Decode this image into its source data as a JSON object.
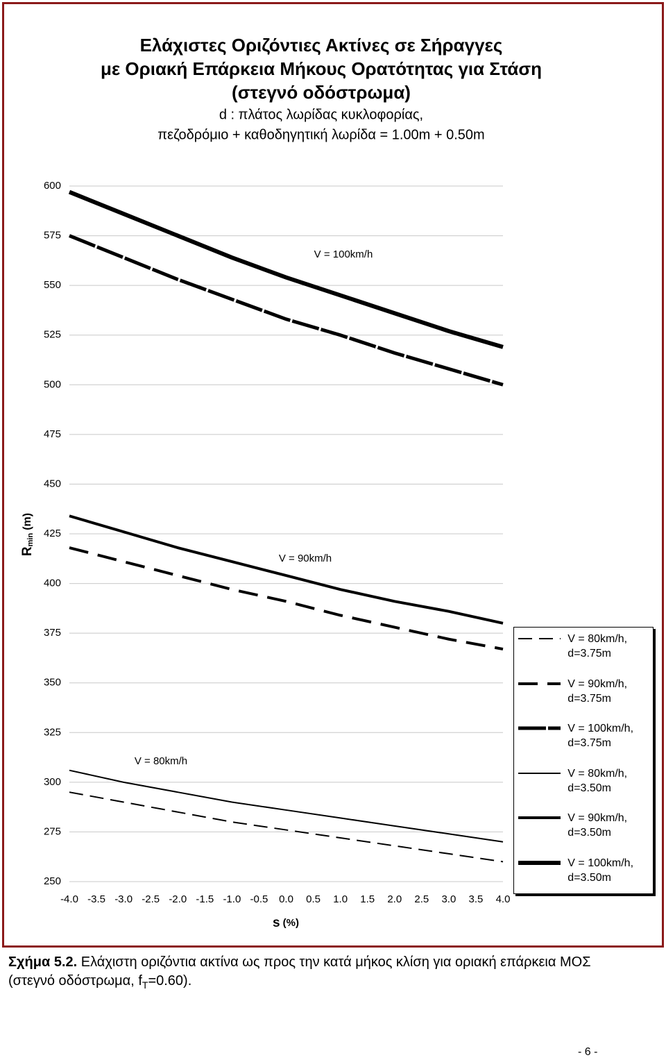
{
  "chart_data": {
    "type": "line",
    "title": [
      "Ελάχιστες Οριζόντιες Ακτίνες σε Σήραγγες",
      "με Οριακή Επάρκεια Μήκους Ορατότητας για Στάση",
      "(στεγνό οδόστρωμα)",
      "d : πλάτος λωρίδας κυκλοφορίας,",
      "πεζοδρόμιο + καθοδηγητική λωρίδα  = 1.00m + 0.50m"
    ],
    "y_label": {
      "main": "R",
      "sub": "min",
      "unit": "(m)"
    },
    "x_label": {
      "main": "s",
      "unit": "(%)"
    },
    "annotations": [
      "V = 100km/h",
      "V = 90km/h",
      "V = 80km/h"
    ],
    "x": [
      -4,
      -3,
      -2,
      -1,
      0,
      1,
      2,
      3,
      4
    ],
    "xlim": [
      -4,
      4
    ],
    "xticks": [
      {
        "value": -4,
        "label": "-4.0"
      },
      {
        "value": -3.5,
        "label": "-3.5"
      },
      {
        "value": -3,
        "label": "-3.0"
      },
      {
        "value": -2.5,
        "label": "-2.5"
      },
      {
        "value": -2,
        "label": "-2.0"
      },
      {
        "value": -1.5,
        "label": "-1.5"
      },
      {
        "value": -1,
        "label": "-1.0"
      },
      {
        "value": -0.5,
        "label": "-0.5"
      },
      {
        "value": 0,
        "label": "0.0"
      },
      {
        "value": 0.5,
        "label": "0.5"
      },
      {
        "value": 1,
        "label": "1.0"
      },
      {
        "value": 1.5,
        "label": "1.5"
      },
      {
        "value": 2,
        "label": "2.0"
      },
      {
        "value": 2.5,
        "label": "2.5"
      },
      {
        "value": 3,
        "label": "3.0"
      },
      {
        "value": 3.5,
        "label": "3.5"
      },
      {
        "value": 4,
        "label": "4.0"
      }
    ],
    "ylim": [
      250,
      600
    ],
    "yticks": [
      250,
      275,
      300,
      325,
      350,
      375,
      400,
      425,
      450,
      475,
      500,
      525,
      550,
      575,
      600
    ],
    "grid": true,
    "legend": "right",
    "series": [
      {
        "name": "V = 80km/h, d=3.75m",
        "color": "#000000",
        "values": [
          295,
          290,
          285,
          280,
          276,
          272,
          268,
          264,
          260
        ]
      },
      {
        "name": "V = 90km/h, d=3.75m",
        "color": "#000000",
        "values": [
          418,
          411,
          404,
          397,
          391,
          384,
          378,
          372,
          367
        ]
      },
      {
        "name": "V = 100km/h, d=3.75m",
        "color": "#000000",
        "values": [
          575,
          564,
          553,
          543,
          533,
          525,
          516,
          508,
          500
        ]
      },
      {
        "name": "V = 80km/h, d=3.50m",
        "color": "#000000",
        "values": [
          306,
          300,
          295,
          290,
          286,
          282,
          278,
          274,
          270
        ]
      },
      {
        "name": "V = 90km/h, d=3.50m",
        "color": "#000000",
        "values": [
          434,
          426,
          418,
          411,
          404,
          397,
          391,
          386,
          380
        ]
      },
      {
        "name": "V = 100km/h, d=3.50m",
        "color": "#000000",
        "values": [
          597,
          586,
          575,
          564,
          554,
          545,
          536,
          527,
          519
        ]
      }
    ]
  },
  "caption": {
    "label": "Σχήμα 5.2.",
    "text": "Ελάχιστη οριζόντια ακτίνα ως προς την κατά μήκος κλίση για οριακή επάρκεια ΜΟΣ (στεγνό οδόστρωμα, f",
    "sub": "T",
    "end": "=0.60)."
  },
  "page_number": "- 6 -"
}
